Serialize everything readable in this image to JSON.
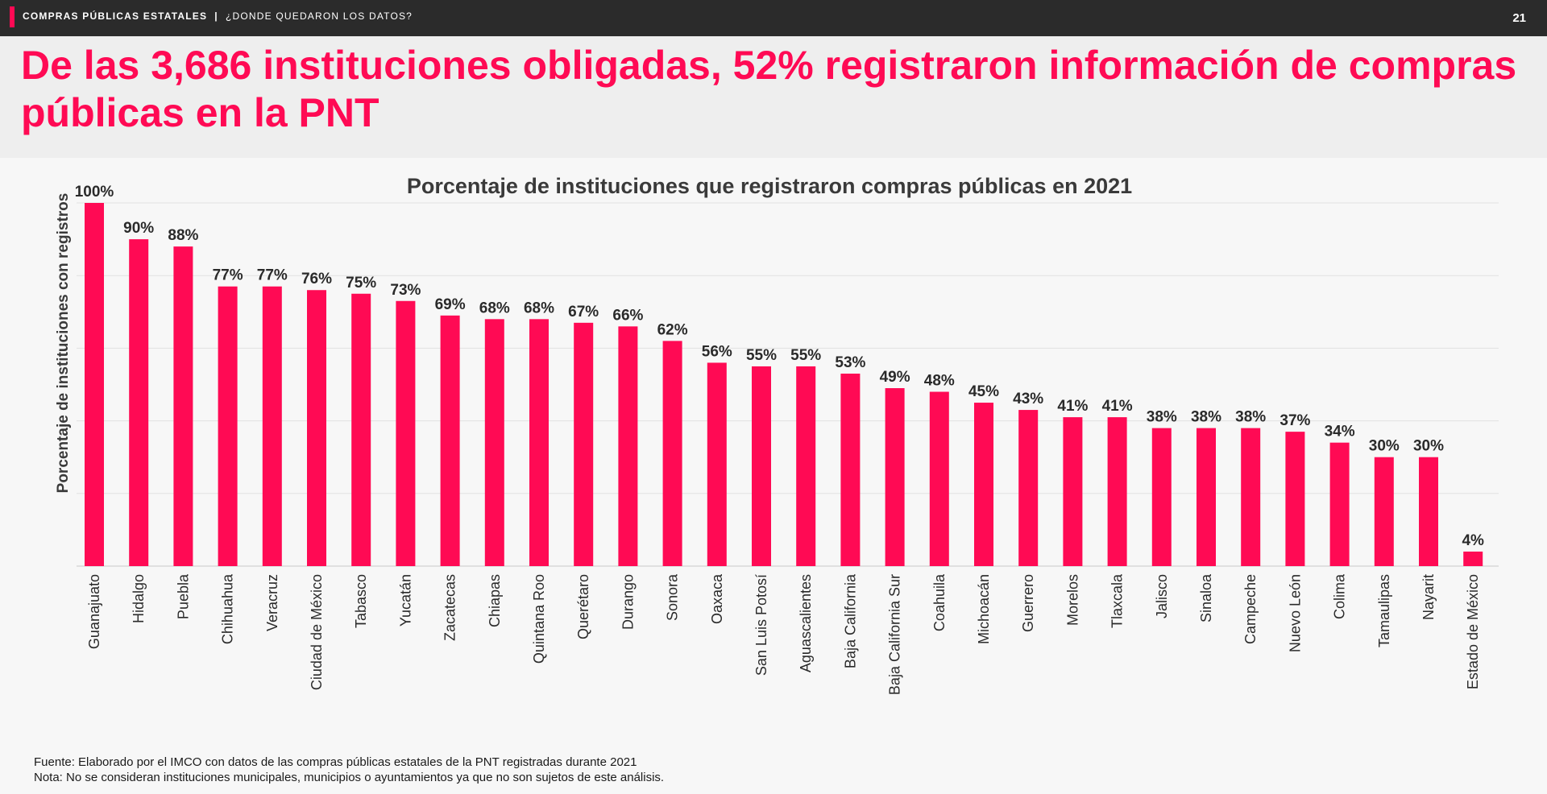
{
  "header": {
    "section": "COMPRAS PÚBLICAS ESTATALES",
    "separator": "|",
    "subsection": "¿DONDE QUEDARON LOS DATOS?",
    "page_number": "21"
  },
  "headline": "De las 3,686 instituciones obligadas, 52% registraron información de compras públicas en la PNT",
  "colors": {
    "accent": "#ff0a54",
    "bar": "#ff0a54",
    "topbar": "#2b2b2b"
  },
  "chart_data": {
    "type": "bar",
    "title": "Porcentaje de instituciones que registraron compras públicas en 2021",
    "xlabel": "",
    "ylabel": "Porcentaje de instituciones con registros",
    "ylim": [
      0,
      100
    ],
    "grid": true,
    "legend": "none",
    "categories": [
      "Guanajuato",
      "Hidalgo",
      "Puebla",
      "Chihuahua",
      "Veracruz",
      "Ciudad de México",
      "Tabasco",
      "Yucatán",
      "Zacatecas",
      "Chiapas",
      "Quintana Roo",
      "Querétaro",
      "Durango",
      "Sonora",
      "Oaxaca",
      "San Luis Potosí",
      "Aguascalientes",
      "Baja California",
      "Baja California Sur",
      "Coahuila",
      "Michoacán",
      "Guerrero",
      "Morelos",
      "Tlaxcala",
      "Jalisco",
      "Sinaloa",
      "Campeche",
      "Nuevo León",
      "Colima",
      "Tamaulipas",
      "Nayarit",
      "Estado de México"
    ],
    "values": [
      100,
      90,
      88,
      77,
      77,
      76,
      75,
      73,
      69,
      68,
      68,
      67,
      66,
      62,
      56,
      55,
      55,
      53,
      49,
      48,
      45,
      43,
      41,
      41,
      38,
      38,
      38,
      37,
      34,
      30,
      30,
      4
    ],
    "labels": [
      "100%",
      "90%",
      "88%",
      "77%",
      "77%",
      "76%",
      "75%",
      "73%",
      "69%",
      "68%",
      "68%",
      "67%",
      "66%",
      "62%",
      "56%",
      "55%",
      "55%",
      "53%",
      "49%",
      "48%",
      "45%",
      "43%",
      "41%",
      "41%",
      "38%",
      "38%",
      "38%",
      "37%",
      "34%",
      "30%",
      "30%",
      "4%"
    ]
  },
  "footnotes": {
    "source": "Fuente: Elaborado por el IMCO con datos de las compras públicas estatales de la PNT registradas durante 2021",
    "note": "Nota: No se consideran instituciones municipales, municipios o ayuntamientos ya que no son sujetos de este análisis."
  }
}
